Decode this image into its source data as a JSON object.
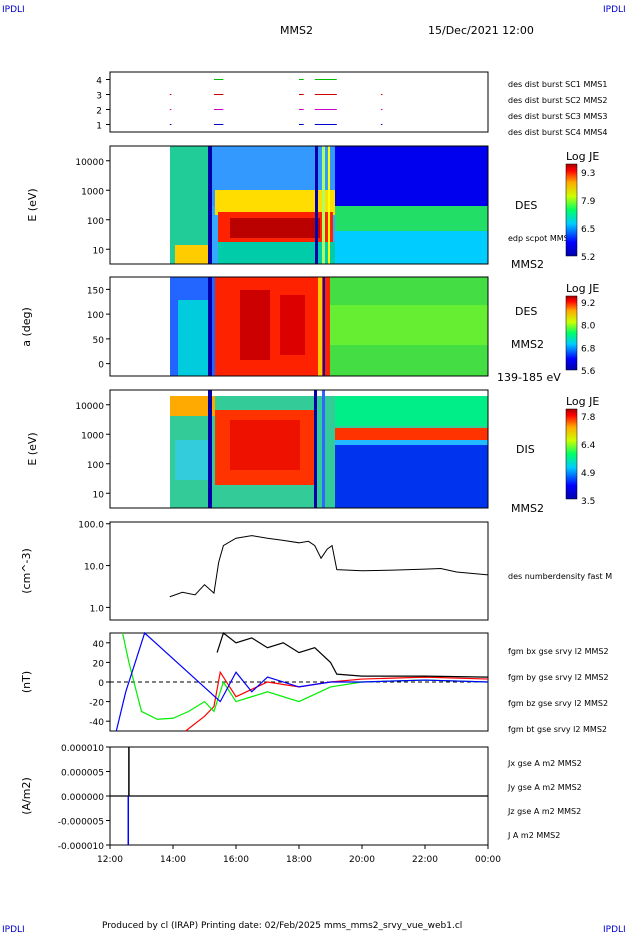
{
  "header": {
    "logo_left": "IPDLI",
    "logo_right": "IPDLI",
    "spacecraft": "MMS2",
    "date": "15/Dec/2021 12:00"
  },
  "footer": {
    "text": "Produced by cl (IRAP)   Printing date: 02/Feb/2025   mms_mms2_srvy_vue_web1.cl",
    "logo_left": "IPDLI",
    "logo_right": "IPDLI"
  },
  "colors": {
    "mms1": "#0000cc",
    "mms2": "#cc00cc",
    "mms3": "#cc0000",
    "mms4": "#00bb00",
    "bx": "#ff0000",
    "by": "#00ee00",
    "bz": "#0000ff",
    "bt": "#000000"
  },
  "chart_data": [
    {
      "type": "scatter",
      "name": "burst",
      "yticks": [
        "1",
        "2",
        "3",
        "4"
      ],
      "legend": [
        "des dist burst SC1 MMS1",
        "des dist burst SC2 MMS2",
        "des dist burst SC3 MMS3",
        "des dist burst SC4 MMS4"
      ],
      "ylim": [
        0.5,
        4.5
      ],
      "segments": [
        {
          "sc": 4,
          "spans": [
            [
              15.3,
              15.6
            ],
            [
              18.0,
              18.15
            ],
            [
              18.5,
              19.2
            ]
          ]
        },
        {
          "sc": 3,
          "spans": [
            [
              13.9,
              13.95
            ],
            [
              15.3,
              15.6
            ],
            [
              18.0,
              18.15
            ],
            [
              18.5,
              19.2
            ],
            [
              20.6,
              20.65
            ]
          ]
        },
        {
          "sc": 2,
          "spans": [
            [
              13.9,
              13.95
            ],
            [
              15.3,
              15.6
            ],
            [
              18.0,
              18.15
            ],
            [
              18.5,
              19.2
            ],
            [
              20.6,
              20.65
            ]
          ]
        },
        {
          "sc": 1,
          "spans": [
            [
              13.9,
              13.95
            ],
            [
              15.3,
              15.6
            ],
            [
              18.0,
              18.15
            ],
            [
              18.5,
              19.2
            ],
            [
              20.6,
              20.65
            ]
          ]
        }
      ]
    },
    {
      "type": "heatmap",
      "name": "des-energy",
      "ylabel": "E (eV)",
      "yticks": [
        "10",
        "100",
        "1000",
        "10000"
      ],
      "label": "DES",
      "sublabel": "MMS2",
      "overlay": "edp scpot MMS2",
      "colorbar_title": "Log JE",
      "colorbar_ticks": [
        "9.3",
        "7.9",
        "6.5",
        "5.2"
      ]
    },
    {
      "type": "heatmap",
      "name": "des-pitch",
      "ylabel": "a (deg)",
      "yticks": [
        "0",
        "50",
        "100",
        "150"
      ],
      "label": "DES",
      "sublabel": "MMS2",
      "energy_range": "139-185 eV",
      "colorbar_title": "Log JE",
      "colorbar_ticks": [
        "9.2",
        "8.0",
        "6.8",
        "5.6"
      ]
    },
    {
      "type": "heatmap",
      "name": "dis-energy",
      "ylabel": "E (eV)",
      "yticks": [
        "10",
        "100",
        "1000",
        "10000"
      ],
      "label": "DIS",
      "sublabel": "MMS2",
      "colorbar_title": "Log JE",
      "colorbar_ticks": [
        "7.8",
        "6.4",
        "4.9",
        "3.5"
      ]
    },
    {
      "type": "line",
      "name": "density",
      "ylabel": "(cm^-3)",
      "yticks": [
        "1.0",
        "10.0",
        "100.0"
      ],
      "legend": [
        "des numberdensity fast M"
      ],
      "points": [
        [
          13.9,
          1.8
        ],
        [
          14.3,
          2.3
        ],
        [
          14.7,
          2.0
        ],
        [
          15.0,
          3.5
        ],
        [
          15.3,
          2.2
        ],
        [
          15.45,
          12
        ],
        [
          15.6,
          30
        ],
        [
          16.0,
          45
        ],
        [
          16.5,
          52
        ],
        [
          17.0,
          45
        ],
        [
          17.5,
          40
        ],
        [
          18.0,
          35
        ],
        [
          18.3,
          38
        ],
        [
          18.5,
          30
        ],
        [
          18.7,
          15
        ],
        [
          18.9,
          25
        ],
        [
          19.05,
          30
        ],
        [
          19.2,
          8
        ],
        [
          20.0,
          7.5
        ],
        [
          21.0,
          7.8
        ],
        [
          22.0,
          8.2
        ],
        [
          22.5,
          8.5
        ],
        [
          23.0,
          7.0
        ],
        [
          24.0,
          6.0
        ]
      ]
    },
    {
      "type": "line",
      "name": "magnetic-field",
      "ylabel": "(nT)",
      "yticks": [
        "-40",
        "-20",
        "0",
        "20",
        "40"
      ],
      "ylim": [
        -50,
        50
      ],
      "legend": [
        "fgm bx gse srvy l2 MMS2",
        "fgm by gse srvy l2 MMS2",
        "fgm bz gse srvy l2 MMS2",
        "fgm bt gse srvy l2 MMS2"
      ],
      "series": [
        {
          "name": "fgm bx gse srvy l2 MMS2",
          "points": [
            [
              14.4,
              -50
            ],
            [
              15.0,
              -35
            ],
            [
              15.3,
              -25
            ],
            [
              15.5,
              10
            ],
            [
              16.0,
              -15
            ],
            [
              17.0,
              0
            ],
            [
              18.0,
              -5
            ],
            [
              19.0,
              0
            ],
            [
              20.0,
              3
            ],
            [
              22.0,
              5
            ],
            [
              24.0,
              3
            ]
          ]
        },
        {
          "name": "fgm by gse srvy l2 MMS2",
          "points": [
            [
              12.4,
              50
            ],
            [
              12.6,
              20
            ],
            [
              13.0,
              -30
            ],
            [
              13.5,
              -38
            ],
            [
              14.0,
              -37
            ],
            [
              14.5,
              -30
            ],
            [
              15.0,
              -20
            ],
            [
              15.3,
              -30
            ],
            [
              15.6,
              0
            ],
            [
              16.0,
              -20
            ],
            [
              17.0,
              -10
            ],
            [
              18.0,
              -20
            ],
            [
              19.0,
              -5
            ],
            [
              20.0,
              0
            ],
            [
              22.0,
              2
            ],
            [
              24.0,
              0
            ]
          ]
        },
        {
          "name": "fgm bz gse srvy l2 MMS2",
          "points": [
            [
              12.2,
              -50
            ],
            [
              12.5,
              -10
            ],
            [
              12.8,
              20
            ],
            [
              13.0,
              40
            ],
            [
              13.1,
              50
            ],
            [
              15.5,
              -20
            ],
            [
              16.0,
              10
            ],
            [
              16.5,
              -10
            ],
            [
              17.0,
              5
            ],
            [
              18.0,
              -5
            ],
            [
              19.0,
              0
            ],
            [
              20.0,
              0
            ],
            [
              22.0,
              2
            ],
            [
              24.0,
              0
            ]
          ]
        },
        {
          "name": "fgm bt gse srvy l2 MMS2",
          "points": [
            [
              15.4,
              30
            ],
            [
              15.6,
              50
            ],
            [
              16.0,
              40
            ],
            [
              16.5,
              45
            ],
            [
              17.0,
              35
            ],
            [
              17.5,
              40
            ],
            [
              18.0,
              30
            ],
            [
              18.5,
              35
            ],
            [
              19.0,
              20
            ],
            [
              19.2,
              8
            ],
            [
              20.0,
              6
            ],
            [
              22.0,
              6
            ],
            [
              24.0,
              5
            ]
          ]
        }
      ]
    },
    {
      "type": "line",
      "name": "current-density",
      "ylabel": "(A/m2)",
      "yticks": [
        "-0.000010",
        "-0.000005",
        "0.000000",
        "0.000005",
        "0.000010"
      ],
      "ylim": [
        -1e-05,
        1e-05
      ],
      "legend": [
        "Jx gse A m2 MMS2",
        "Jy gse A m2 MMS2",
        "Jz gse A m2 MMS2",
        "J A m2 MMS2"
      ]
    }
  ],
  "x_axis": {
    "ticks": [
      "12:00",
      "14:00",
      "16:00",
      "18:00",
      "20:00",
      "22:00",
      "00:00"
    ],
    "range": [
      12,
      24
    ]
  }
}
